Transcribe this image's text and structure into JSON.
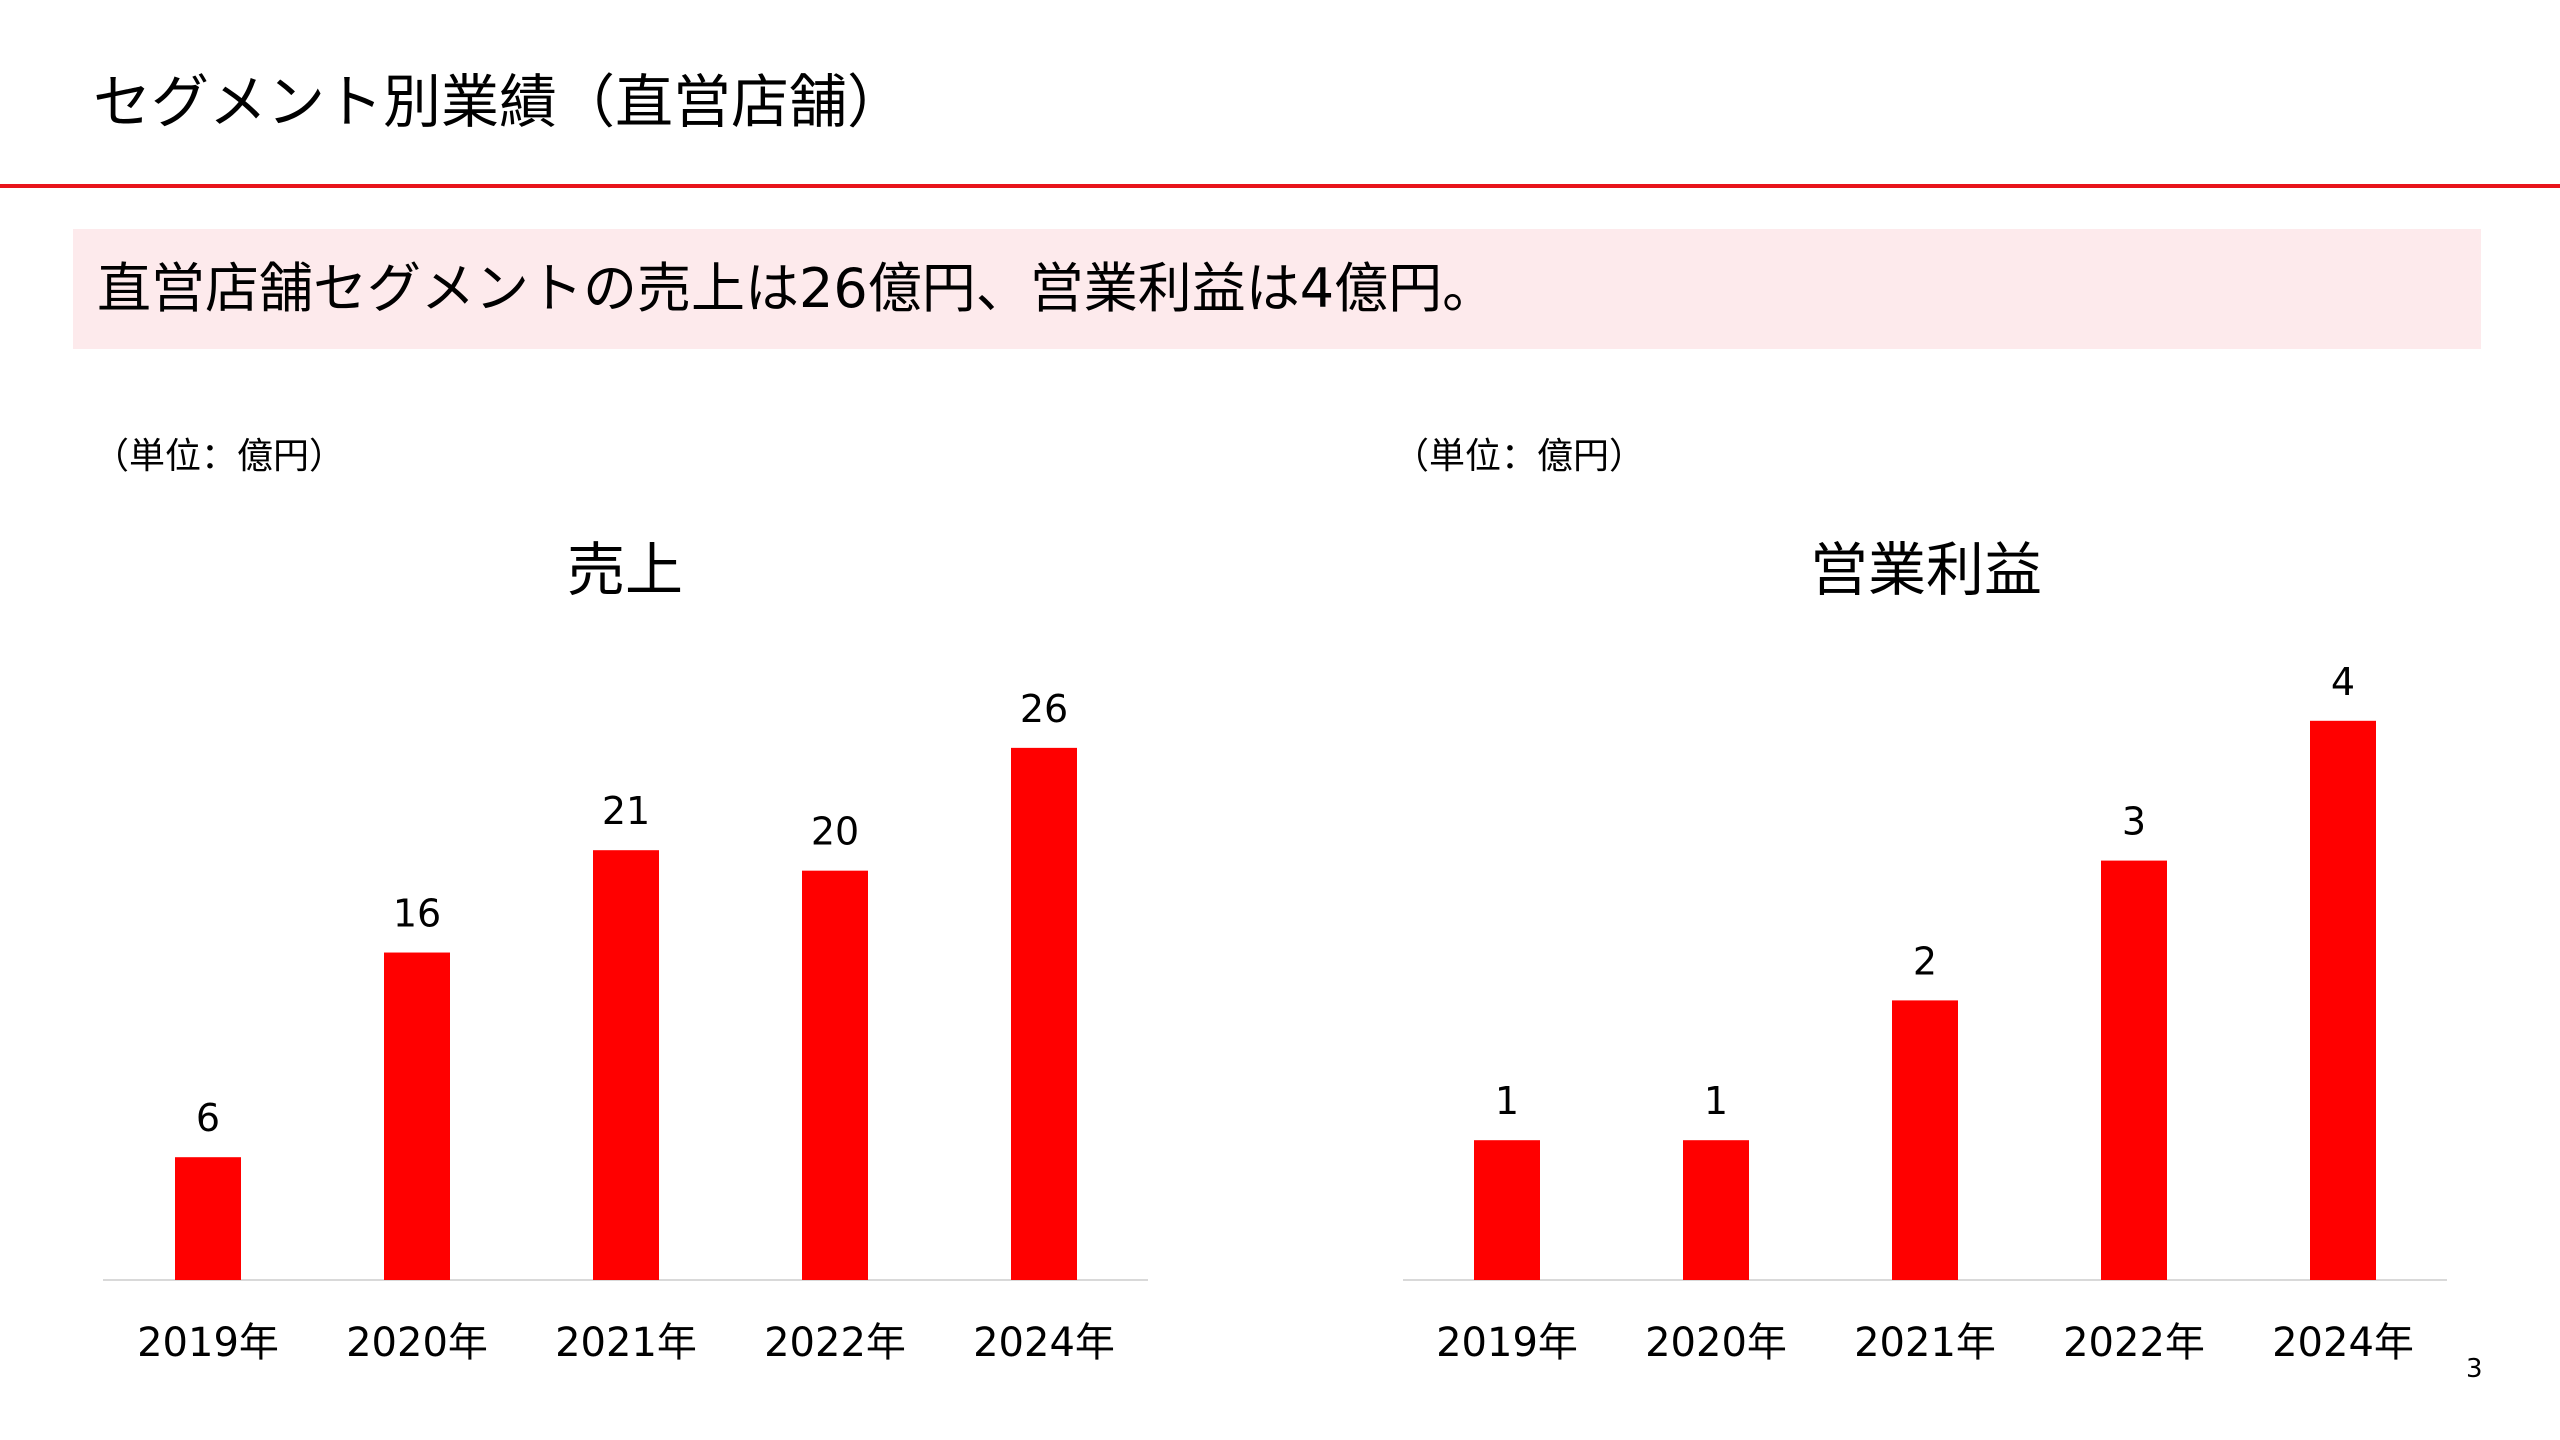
{
  "slide": {
    "title": "セグメント別業績（直営店舗）",
    "summary": "直営店舗セグメントの売上は26億円、営業利益は4億円。",
    "page_number": "3",
    "accent_color": "#e8141b",
    "bar_color": "#ff0000",
    "summary_bg_color": "#fdeaec"
  },
  "chart_data": [
    {
      "type": "bar",
      "title": "売上",
      "unit_note": "（単位：億円）",
      "categories": [
        "2019年",
        "2020年",
        "2021年",
        "2022年",
        "2024年"
      ],
      "values": [
        6,
        16,
        21,
        20,
        26
      ],
      "data_labels": [
        "6",
        "16",
        "21",
        "20",
        "26"
      ],
      "ylim": [
        0,
        30
      ],
      "grid": false
    },
    {
      "type": "bar",
      "title": "営業利益",
      "unit_note": "（単位：億円）",
      "categories": [
        "2019年",
        "2020年",
        "2021年",
        "2022年",
        "2024年"
      ],
      "values": [
        1,
        1,
        2,
        3,
        4
      ],
      "data_labels": [
        "1",
        "1",
        "2",
        "3",
        "4"
      ],
      "ylim": [
        0,
        5
      ],
      "grid": false
    }
  ]
}
